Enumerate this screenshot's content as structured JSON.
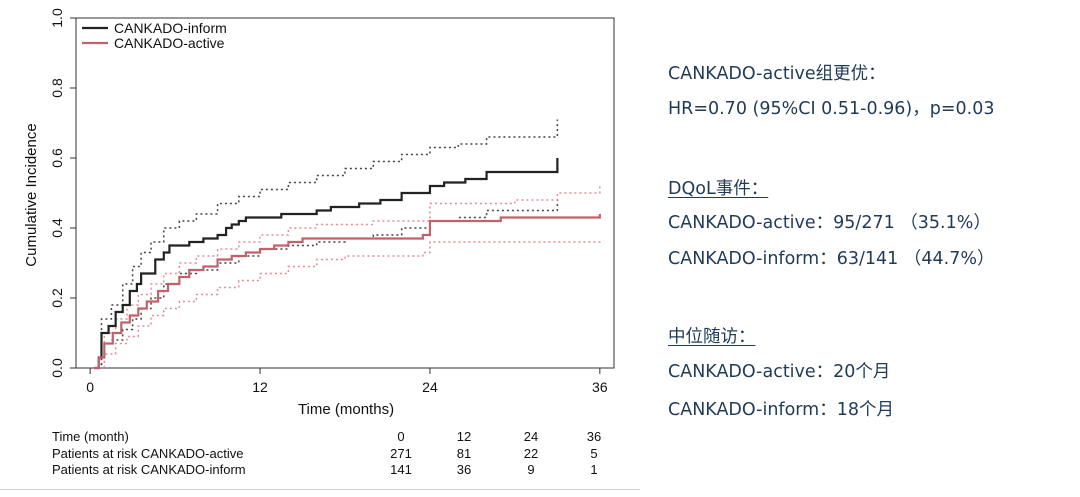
{
  "chart_data": {
    "type": "line",
    "xlabel": "Time (months)",
    "ylabel": "Cumulative Incidence",
    "xlim": [
      -1,
      37
    ],
    "ylim": [
      0,
      1.0
    ],
    "x_ticks": [
      "0",
      "12",
      "24",
      "36"
    ],
    "y_ticks": [
      "0.0",
      "0.2",
      "0.4",
      "0.6",
      "0.8",
      "1.0"
    ],
    "legend_position": "top-left",
    "grid": false,
    "series": [
      {
        "name": "CANKADO-inform",
        "color": "#222222",
        "style": "step",
        "points": [
          [
            0.3,
            0.0
          ],
          [
            0.6,
            0.03
          ],
          [
            0.8,
            0.1
          ],
          [
            1.3,
            0.12
          ],
          [
            1.8,
            0.16
          ],
          [
            2.3,
            0.18
          ],
          [
            2.8,
            0.22
          ],
          [
            3.3,
            0.24
          ],
          [
            3.6,
            0.27
          ],
          [
            4.2,
            0.27
          ],
          [
            4.6,
            0.31
          ],
          [
            5.2,
            0.33
          ],
          [
            5.6,
            0.35
          ],
          [
            6.5,
            0.35
          ],
          [
            7.0,
            0.36
          ],
          [
            8.0,
            0.37
          ],
          [
            9.0,
            0.38
          ],
          [
            9.6,
            0.4
          ],
          [
            10.0,
            0.41
          ],
          [
            10.5,
            0.42
          ],
          [
            11.0,
            0.43
          ],
          [
            12.0,
            0.43
          ],
          [
            13.5,
            0.44
          ],
          [
            15.0,
            0.44
          ],
          [
            16.0,
            0.45
          ],
          [
            17.0,
            0.46
          ],
          [
            19.0,
            0.47
          ],
          [
            20.5,
            0.48
          ],
          [
            22.0,
            0.5
          ],
          [
            24.0,
            0.52
          ],
          [
            25.0,
            0.53
          ],
          [
            26.5,
            0.54
          ],
          [
            28.0,
            0.56
          ],
          [
            30.0,
            0.56
          ],
          [
            33.0,
            0.56
          ],
          [
            33.0,
            0.6
          ]
        ]
      },
      {
        "name": "CANKADO-active",
        "color": "#c0626b",
        "style": "step",
        "points": [
          [
            0.3,
            0.0
          ],
          [
            0.6,
            0.03
          ],
          [
            1.0,
            0.07
          ],
          [
            1.6,
            0.1
          ],
          [
            2.2,
            0.13
          ],
          [
            2.8,
            0.15
          ],
          [
            3.4,
            0.17
          ],
          [
            4.0,
            0.19
          ],
          [
            4.8,
            0.22
          ],
          [
            5.5,
            0.24
          ],
          [
            6.3,
            0.26
          ],
          [
            7.0,
            0.28
          ],
          [
            8.0,
            0.29
          ],
          [
            9.0,
            0.31
          ],
          [
            10.0,
            0.32
          ],
          [
            11.0,
            0.33
          ],
          [
            12.0,
            0.34
          ],
          [
            13.0,
            0.35
          ],
          [
            14.0,
            0.36
          ],
          [
            15.0,
            0.37
          ],
          [
            16.5,
            0.37
          ],
          [
            18.0,
            0.37
          ],
          [
            20.0,
            0.37
          ],
          [
            23.5,
            0.38
          ],
          [
            24.0,
            0.42
          ],
          [
            26.0,
            0.42
          ],
          [
            29.0,
            0.43
          ],
          [
            32.0,
            0.43
          ],
          [
            36.0,
            0.44
          ]
        ]
      }
    ],
    "ci_bands": [
      {
        "name": "CANKADO-inform 95% CI",
        "color": "#444444",
        "upper": [
          [
            0.3,
            0.0
          ],
          [
            0.8,
            0.14
          ],
          [
            1.5,
            0.18
          ],
          [
            2.3,
            0.24
          ],
          [
            3.0,
            0.29
          ],
          [
            3.6,
            0.33
          ],
          [
            4.3,
            0.36
          ],
          [
            5.2,
            0.4
          ],
          [
            6.3,
            0.42
          ],
          [
            7.5,
            0.44
          ],
          [
            9.0,
            0.47
          ],
          [
            10.5,
            0.49
          ],
          [
            12.0,
            0.51
          ],
          [
            14.0,
            0.53
          ],
          [
            16.0,
            0.55
          ],
          [
            18.0,
            0.57
          ],
          [
            20.0,
            0.59
          ],
          [
            22.0,
            0.61
          ],
          [
            24.0,
            0.63
          ],
          [
            26.0,
            0.64
          ],
          [
            28.0,
            0.66
          ],
          [
            30.0,
            0.66
          ],
          [
            33.0,
            0.66
          ],
          [
            33.0,
            0.71
          ]
        ],
        "lower": [
          [
            0.3,
            0.0
          ],
          [
            0.8,
            0.07
          ],
          [
            1.5,
            0.08
          ],
          [
            2.3,
            0.11
          ],
          [
            3.0,
            0.14
          ],
          [
            3.6,
            0.17
          ],
          [
            4.3,
            0.2
          ],
          [
            5.2,
            0.24
          ],
          [
            6.3,
            0.27
          ],
          [
            7.5,
            0.28
          ],
          [
            9.0,
            0.3
          ],
          [
            10.5,
            0.32
          ],
          [
            12.0,
            0.34
          ],
          [
            14.0,
            0.35
          ],
          [
            16.0,
            0.36
          ],
          [
            18.0,
            0.37
          ],
          [
            20.0,
            0.38
          ],
          [
            22.0,
            0.4
          ],
          [
            24.0,
            0.42
          ],
          [
            26.0,
            0.43
          ],
          [
            28.0,
            0.45
          ],
          [
            30.0,
            0.45
          ],
          [
            33.0,
            0.45
          ],
          [
            33.0,
            0.49
          ]
        ]
      },
      {
        "name": "CANKADO-active 95% CI",
        "color": "#e38c95",
        "upper": [
          [
            0.3,
            0.0
          ],
          [
            1.0,
            0.1
          ],
          [
            1.8,
            0.14
          ],
          [
            2.6,
            0.18
          ],
          [
            3.4,
            0.21
          ],
          [
            4.3,
            0.24
          ],
          [
            5.2,
            0.27
          ],
          [
            6.3,
            0.3
          ],
          [
            7.5,
            0.32
          ],
          [
            9.0,
            0.34
          ],
          [
            10.5,
            0.36
          ],
          [
            12.0,
            0.38
          ],
          [
            14.0,
            0.4
          ],
          [
            16.0,
            0.41
          ],
          [
            18.0,
            0.41
          ],
          [
            20.0,
            0.42
          ],
          [
            23.5,
            0.42
          ],
          [
            24.0,
            0.47
          ],
          [
            26.0,
            0.47
          ],
          [
            30.0,
            0.48
          ],
          [
            33.0,
            0.5
          ],
          [
            36.0,
            0.52
          ]
        ],
        "lower": [
          [
            0.3,
            0.0
          ],
          [
            1.0,
            0.04
          ],
          [
            1.8,
            0.07
          ],
          [
            2.6,
            0.09
          ],
          [
            3.4,
            0.12
          ],
          [
            4.3,
            0.15
          ],
          [
            5.2,
            0.17
          ],
          [
            6.3,
            0.19
          ],
          [
            7.5,
            0.21
          ],
          [
            9.0,
            0.23
          ],
          [
            10.5,
            0.25
          ],
          [
            12.0,
            0.27
          ],
          [
            14.0,
            0.29
          ],
          [
            16.0,
            0.31
          ],
          [
            18.0,
            0.32
          ],
          [
            20.0,
            0.32
          ],
          [
            23.5,
            0.33
          ],
          [
            24.0,
            0.36
          ],
          [
            26.0,
            0.36
          ],
          [
            30.0,
            0.36
          ],
          [
            33.0,
            0.36
          ],
          [
            36.0,
            0.37
          ]
        ]
      }
    ],
    "risk_table": {
      "header_label": "Time (month)",
      "times": [
        "0",
        "12",
        "24",
        "36"
      ],
      "rows": [
        {
          "label": "Patients at risk CANKADO-active",
          "values": [
            "271",
            "81",
            "22",
            "5"
          ]
        },
        {
          "label": "Patients at risk CANKADO-inform",
          "values": [
            "141",
            "36",
            "9",
            "1"
          ]
        }
      ]
    }
  },
  "info": {
    "superiority": "CANKADO-active组更优：",
    "hr_line": "HR=0.70 (95%CI 0.51-0.96)，p=0.03",
    "dqol_heading": "DQoL事件：",
    "dqol_active": "CANKADO-active：95/271 （35.1%）",
    "dqol_inform": "CANKADO-inform：63/141 （44.7%）",
    "followup_heading": "中位随访：",
    "followup_active": "CANKADO-active：20个月",
    "followup_inform": "CANKADO-inform：18个月"
  }
}
